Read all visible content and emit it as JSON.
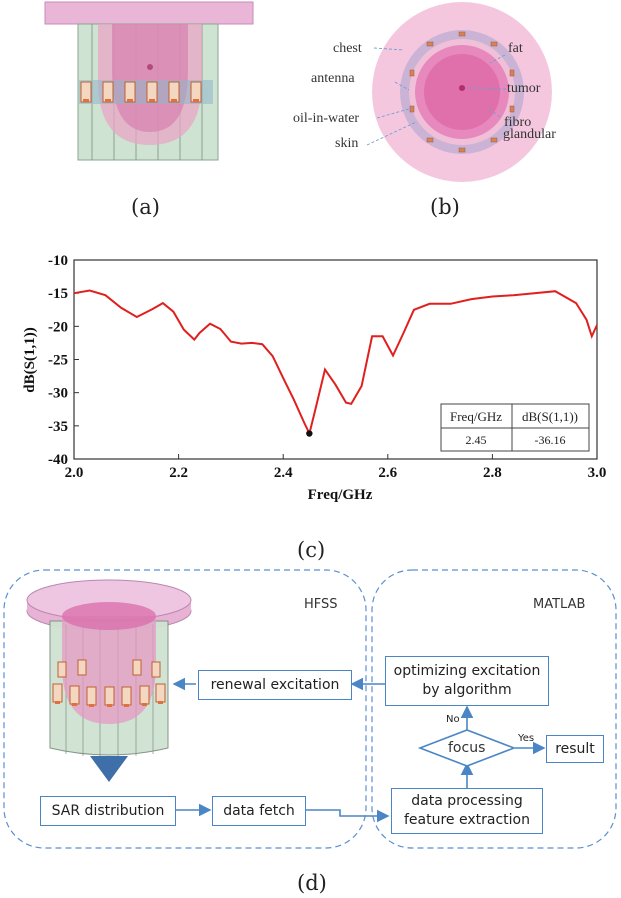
{
  "captions": {
    "a": "(a)",
    "b": "(b)",
    "c": "(c)",
    "d": "(d)"
  },
  "panel_b": {
    "labels": {
      "chest": "chest",
      "antenna": "antenna",
      "oil_in_water": "oil-in-water",
      "skin": "skin",
      "fat": "fat",
      "tumor": "tumor",
      "fibro": "fibro",
      "glandular": "glandular"
    }
  },
  "chart_data": {
    "type": "line",
    "title": "",
    "xlabel": "Freq/GHz",
    "ylabel": "dB(S(1,1))",
    "xlim": [
      2.0,
      3.0
    ],
    "ylim": [
      -40,
      -10
    ],
    "xticks": [
      "2.0",
      "2.2",
      "2.4",
      "2.6",
      "2.8",
      "3.0"
    ],
    "yticks": [
      "-10",
      "-15",
      "-20",
      "-25",
      "-30",
      "-35",
      "-40"
    ],
    "series": [
      {
        "name": "dB(S(1,1))",
        "color": "#e0201e",
        "x": [
          2.0,
          2.03,
          2.06,
          2.09,
          2.12,
          2.15,
          2.17,
          2.19,
          2.21,
          2.23,
          2.24,
          2.26,
          2.28,
          2.3,
          2.32,
          2.34,
          2.36,
          2.38,
          2.4,
          2.42,
          2.44,
          2.45,
          2.46,
          2.48,
          2.5,
          2.52,
          2.53,
          2.55,
          2.57,
          2.59,
          2.61,
          2.63,
          2.65,
          2.68,
          2.72,
          2.76,
          2.8,
          2.84,
          2.88,
          2.92,
          2.96,
          2.98,
          2.99,
          3.0
        ],
        "y": [
          -15.0,
          -14.6,
          -15.3,
          -17.2,
          -18.6,
          -17.4,
          -16.5,
          -17.8,
          -20.5,
          -22.0,
          -21.0,
          -19.6,
          -20.4,
          -22.3,
          -22.6,
          -22.5,
          -22.7,
          -24.5,
          -27.8,
          -31.0,
          -34.5,
          -36.16,
          -33.0,
          -26.5,
          -28.8,
          -31.5,
          -31.7,
          -29.0,
          -21.5,
          -21.5,
          -24.4,
          -21.0,
          -17.5,
          -16.6,
          -16.6,
          -15.9,
          -15.5,
          -15.3,
          -15.0,
          -14.7,
          -16.5,
          -19.0,
          -21.5,
          -19.8
        ]
      }
    ],
    "marker": {
      "x": 2.45,
      "y": -36.16
    },
    "table": {
      "headers": [
        "Freq/GHz",
        "dB(S(1,1))"
      ],
      "row": [
        "2.45",
        "-36.16"
      ]
    }
  },
  "flow": {
    "hfss_title": "HFSS",
    "matlab_title": "MATLAB",
    "renewal": "renewal excitation",
    "optimizing_line1": "optimizing excitation",
    "optimizing_line2": "by algorithm",
    "focus": "focus",
    "result": "result",
    "no": "No",
    "yes": "Yes",
    "sar": "SAR distribution",
    "fetch": "data fetch",
    "processing_line1": "data processing",
    "processing_line2": "feature extraction"
  }
}
